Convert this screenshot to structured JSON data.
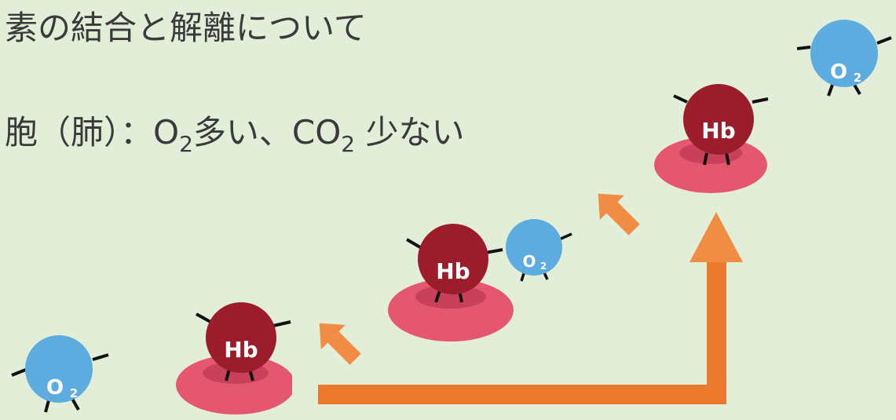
{
  "slide": {
    "title": "素の結合と解離について",
    "line": [
      "胞（肺）：O",
      "2",
      "多い、CO",
      "2",
      " 少ない"
    ],
    "characters": [
      {
        "label": [
          "O",
          "2"
        ]
      },
      {
        "label": "Hb"
      },
      {
        "label": "Hb"
      },
      {
        "label": [
          "O",
          "2"
        ]
      },
      {
        "label": "Hb"
      },
      {
        "label": [
          "O",
          "2"
        ]
      }
    ]
  }
}
